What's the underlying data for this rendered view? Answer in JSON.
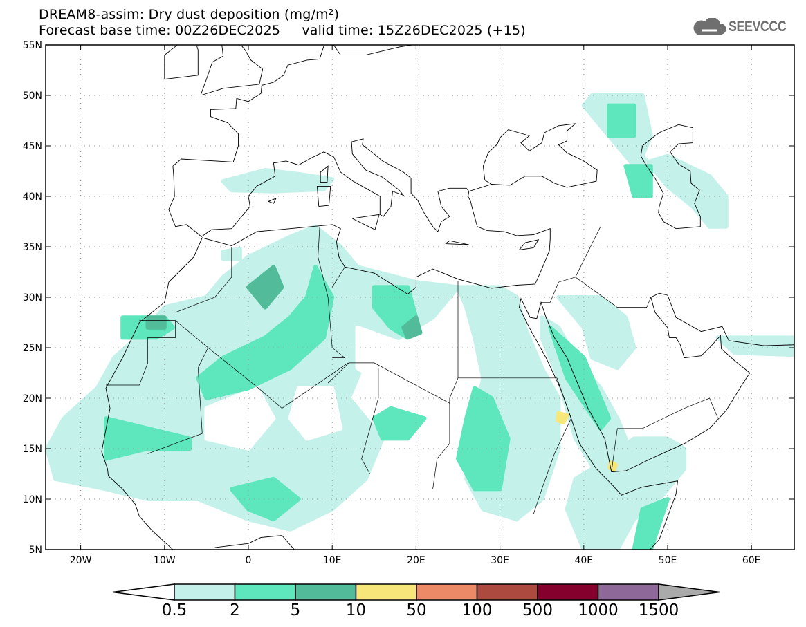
{
  "title": {
    "line1": "DREAM8-assim: Dry dust deposition (mg/m²)",
    "line2": "Forecast base time: 00Z26DEC2025     valid time: 15Z26DEC2025 (+15)"
  },
  "logo": {
    "text": "SEEVCCC",
    "icon": "cloud-icon"
  },
  "map": {
    "lon_range": [
      -24.2,
      65.1
    ],
    "lat_range": [
      5,
      55
    ],
    "lon_ticks": [
      {
        "v": -20,
        "label": "20W"
      },
      {
        "v": -10,
        "label": "10W"
      },
      {
        "v": 0,
        "label": "0"
      },
      {
        "v": 10,
        "label": "10E"
      },
      {
        "v": 20,
        "label": "20E"
      },
      {
        "v": 30,
        "label": "30E"
      },
      {
        "v": 40,
        "label": "40E"
      },
      {
        "v": 50,
        "label": "50E"
      },
      {
        "v": 60,
        "label": "60E"
      }
    ],
    "lat_ticks": [
      {
        "v": 55,
        "label": "55N"
      },
      {
        "v": 50,
        "label": "50N"
      },
      {
        "v": 45,
        "label": "45N"
      },
      {
        "v": 40,
        "label": "40N"
      },
      {
        "v": 35,
        "label": "35N"
      },
      {
        "v": 30,
        "label": "30N"
      },
      {
        "v": 25,
        "label": "25N"
      },
      {
        "v": 20,
        "label": "20N"
      },
      {
        "v": 15,
        "label": "15N"
      },
      {
        "v": 10,
        "label": "10N"
      },
      {
        "v": 5,
        "label": "5N"
      }
    ]
  },
  "colorbar": {
    "labels": [
      "0.5",
      "2",
      "5",
      "10",
      "50",
      "100",
      "500",
      "1000",
      "1500"
    ],
    "colors": [
      "#c4f2ea",
      "#5ee6bd",
      "#52bc9a",
      "#f7e77a",
      "#ec8a68",
      "#ad4a3f",
      "#85002d",
      "#8e6899"
    ],
    "over_color": "#aaaaaa"
  },
  "dust_fields": [
    {
      "level": 0,
      "pts": [
        [
          -22,
          18
        ],
        [
          -18,
          21
        ],
        [
          -16,
          24
        ],
        [
          -12,
          27
        ],
        [
          -10,
          29
        ],
        [
          -5,
          30
        ],
        [
          -3,
          32
        ],
        [
          0,
          34
        ],
        [
          5,
          36
        ],
        [
          8,
          37
        ],
        [
          11,
          35
        ],
        [
          13,
          33
        ],
        [
          20,
          31.5
        ],
        [
          25,
          31
        ],
        [
          22,
          28
        ],
        [
          18,
          26
        ],
        [
          14,
          24
        ],
        [
          12,
          20
        ],
        [
          16,
          16
        ],
        [
          14,
          12
        ],
        [
          10,
          9
        ],
        [
          5,
          7
        ],
        [
          0,
          8
        ],
        [
          -6,
          10
        ],
        [
          -12,
          10
        ],
        [
          -17,
          11
        ],
        [
          -23,
          12
        ],
        [
          -24,
          15
        ]
      ]
    },
    {
      "level": 0,
      "pts": [
        [
          25,
          31
        ],
        [
          30,
          31
        ],
        [
          32,
          30
        ],
        [
          33,
          27
        ],
        [
          35,
          23
        ],
        [
          37,
          20
        ],
        [
          37,
          15
        ],
        [
          35,
          10
        ],
        [
          32,
          8
        ],
        [
          28,
          9
        ],
        [
          26,
          12
        ],
        [
          27,
          18
        ],
        [
          28,
          22
        ],
        [
          27,
          26
        ],
        [
          26,
          29
        ]
      ]
    },
    {
      "level": 0,
      "pts": [
        [
          35,
          28
        ],
        [
          37,
          27
        ],
        [
          39,
          24
        ],
        [
          42,
          21
        ],
        [
          44,
          18
        ],
        [
          45,
          16
        ],
        [
          44,
          13
        ],
        [
          42,
          12
        ],
        [
          39,
          16
        ],
        [
          37,
          22
        ],
        [
          35,
          26
        ]
      ]
    },
    {
      "level": 0,
      "pts": [
        [
          37,
          30
        ],
        [
          42,
          30
        ],
        [
          45,
          28
        ],
        [
          46,
          25
        ],
        [
          44,
          23
        ],
        [
          41,
          24
        ],
        [
          40,
          27
        ]
      ]
    },
    {
      "level": 0,
      "pts": [
        [
          41,
          13
        ],
        [
          46,
          16
        ],
        [
          50,
          16
        ],
        [
          52,
          15
        ],
        [
          52,
          13
        ],
        [
          49,
          10
        ],
        [
          46,
          8
        ],
        [
          44,
          5
        ],
        [
          40,
          5
        ],
        [
          38,
          9
        ],
        [
          39,
          12
        ]
      ]
    },
    {
      "level": 0,
      "pts": [
        [
          41,
          50
        ],
        [
          47,
          50
        ],
        [
          48,
          46
        ],
        [
          47,
          44
        ],
        [
          50,
          41
        ],
        [
          53,
          39
        ],
        [
          55,
          37
        ],
        [
          57,
          37
        ],
        [
          57,
          40
        ],
        [
          55,
          42
        ],
        [
          50,
          44
        ],
        [
          46,
          43
        ],
        [
          44,
          45
        ],
        [
          42,
          47
        ],
        [
          40,
          49
        ]
      ]
    },
    {
      "level": 0,
      "pts": [
        [
          -3,
          41.5
        ],
        [
          2,
          42.6
        ],
        [
          6,
          42.2
        ],
        [
          10,
          41.7
        ],
        [
          9,
          40.7
        ],
        [
          3,
          40.5
        ],
        [
          -2,
          40.6
        ]
      ]
    },
    {
      "level": 0,
      "pts": [
        [
          56,
          26
        ],
        [
          65,
          26
        ],
        [
          65,
          24.3
        ],
        [
          58,
          24.5
        ]
      ]
    },
    {
      "level": 0,
      "pts": [
        [
          -3,
          34.5
        ],
        [
          -1,
          34.8
        ],
        [
          -1,
          33.8
        ],
        [
          -3,
          33.8
        ]
      ]
    },
    {
      "level": -1,
      "pts": [
        [
          6,
          21
        ],
        [
          10,
          21
        ],
        [
          11,
          17
        ],
        [
          7,
          16
        ],
        [
          5,
          18
        ]
      ]
    },
    {
      "level": -1,
      "pts": [
        [
          13,
          27
        ],
        [
          18,
          25.5
        ],
        [
          20,
          23
        ],
        [
          17,
          21
        ],
        [
          13,
          23
        ]
      ]
    },
    {
      "level": -1,
      "pts": [
        [
          -5,
          19
        ],
        [
          1,
          21
        ],
        [
          3,
          18
        ],
        [
          0,
          15
        ],
        [
          -5,
          16
        ]
      ]
    },
    {
      "level": -1,
      "pts": [
        [
          20,
          20
        ],
        [
          24,
          21
        ],
        [
          24,
          16
        ],
        [
          21,
          14
        ],
        [
          19,
          16
        ]
      ]
    },
    {
      "level": 1,
      "pts": [
        [
          -6,
          22
        ],
        [
          -3,
          24
        ],
        [
          2,
          26
        ],
        [
          5,
          28
        ],
        [
          7,
          30
        ],
        [
          8,
          33
        ],
        [
          10,
          30
        ],
        [
          9,
          26
        ],
        [
          5,
          23
        ],
        [
          0,
          21
        ],
        [
          -5,
          20
        ]
      ]
    },
    {
      "level": 1,
      "pts": [
        [
          -15,
          28
        ],
        [
          -10,
          28
        ],
        [
          -9,
          27
        ],
        [
          -11,
          26
        ],
        [
          -15,
          26
        ]
      ]
    },
    {
      "level": 1,
      "pts": [
        [
          -17,
          18
        ],
        [
          -12,
          17
        ],
        [
          -7,
          16
        ],
        [
          -7,
          15
        ],
        [
          -12,
          15
        ],
        [
          -17,
          14
        ]
      ]
    },
    {
      "level": 1,
      "pts": [
        [
          15,
          31
        ],
        [
          19,
          31
        ],
        [
          20,
          28
        ],
        [
          19,
          26
        ],
        [
          17,
          27
        ],
        [
          15,
          29
        ]
      ]
    },
    {
      "level": 1,
      "pts": [
        [
          27,
          21
        ],
        [
          29,
          20
        ],
        [
          31,
          16
        ],
        [
          30,
          11
        ],
        [
          27,
          11
        ],
        [
          25,
          14
        ],
        [
          26,
          18
        ]
      ]
    },
    {
      "level": 1,
      "pts": [
        [
          15,
          18
        ],
        [
          17,
          19
        ],
        [
          21,
          18
        ],
        [
          19,
          16
        ],
        [
          16,
          16
        ]
      ]
    },
    {
      "level": 1,
      "pts": [
        [
          36,
          27
        ],
        [
          40,
          24
        ],
        [
          43,
          18
        ],
        [
          42,
          17
        ],
        [
          38,
          22
        ]
      ]
    },
    {
      "level": 1,
      "pts": [
        [
          -2,
          11
        ],
        [
          3,
          12
        ],
        [
          6,
          10
        ],
        [
          3,
          8
        ],
        [
          0,
          9
        ]
      ]
    },
    {
      "level": 1,
      "pts": [
        [
          43,
          49
        ],
        [
          46,
          49
        ],
        [
          46,
          46
        ],
        [
          43,
          46
        ]
      ]
    },
    {
      "level": 1,
      "pts": [
        [
          45,
          43
        ],
        [
          48,
          43
        ],
        [
          48,
          40
        ],
        [
          46,
          40
        ]
      ]
    },
    {
      "level": 1,
      "pts": [
        [
          47,
          9
        ],
        [
          50,
          10
        ],
        [
          48,
          5
        ],
        [
          46,
          5
        ]
      ]
    },
    {
      "level": 2,
      "pts": [
        [
          0,
          31
        ],
        [
          3,
          33
        ],
        [
          4,
          31
        ],
        [
          2,
          29
        ]
      ]
    },
    {
      "level": 2,
      "pts": [
        [
          18.5,
          27
        ],
        [
          20,
          28
        ],
        [
          20.5,
          26.5
        ],
        [
          19,
          26
        ]
      ]
    },
    {
      "level": 2,
      "pts": [
        [
          -12,
          28
        ],
        [
          -10,
          28
        ],
        [
          -10,
          27
        ],
        [
          -12,
          27
        ]
      ]
    },
    {
      "level": 3,
      "pts": [
        [
          37,
          18.5
        ],
        [
          38,
          18.3
        ],
        [
          37.6,
          17.6
        ],
        [
          36.9,
          17.8
        ]
      ]
    },
    {
      "level": 3,
      "pts": [
        [
          43.2,
          13.6
        ],
        [
          43.8,
          13.4
        ],
        [
          43.6,
          12.9
        ],
        [
          43.1,
          13.1
        ]
      ]
    }
  ]
}
